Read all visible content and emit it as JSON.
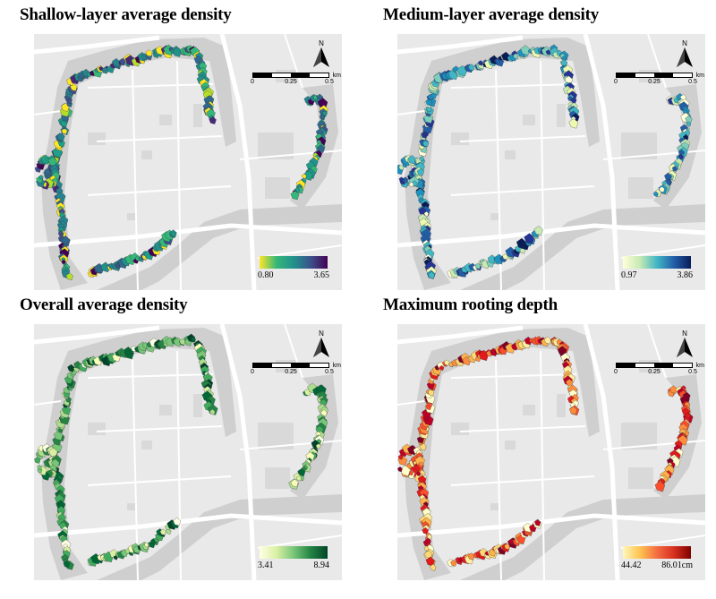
{
  "north_label": "N",
  "scale_bar": {
    "ticks": [
      "0",
      "0.25",
      "0.5"
    ],
    "unit": "km"
  },
  "basemap_colors": {
    "background": "#e9e9e9",
    "roads": "#ffffff",
    "blocks": "#d9d9d9",
    "wall_band": "#cfcfcf"
  },
  "panels": [
    {
      "title": "Shallow-layer average density",
      "legend": {
        "min": "0.80",
        "max": "3.65",
        "colors": [
          "#fde725",
          "#35b779",
          "#21918c",
          "#3b528b",
          "#440154"
        ]
      },
      "palette": [
        "#fde725",
        "#b5de2b",
        "#35b779",
        "#1f9e89",
        "#21918c",
        "#26828e",
        "#31688e",
        "#3b528b",
        "#482878",
        "#440154"
      ],
      "weights": [
        0.08,
        0.06,
        0.12,
        0.12,
        0.16,
        0.14,
        0.12,
        0.1,
        0.06,
        0.04
      ]
    },
    {
      "title": "Medium-layer average density",
      "legend": {
        "min": "0.97",
        "max": "3.86",
        "colors": [
          "#ffffd9",
          "#c7e9b4",
          "#41b6c4",
          "#225ea8",
          "#081d58"
        ]
      },
      "palette": [
        "#ffffd9",
        "#edf8b1",
        "#c7e9b4",
        "#7fcdbb",
        "#41b6c4",
        "#1d91c0",
        "#225ea8",
        "#253494",
        "#081d58"
      ],
      "weights": [
        0.07,
        0.07,
        0.1,
        0.14,
        0.18,
        0.16,
        0.14,
        0.09,
        0.05
      ]
    },
    {
      "title": "Overall average density",
      "legend": {
        "min": "3.41",
        "max": "8.94",
        "colors": [
          "#ffffe5",
          "#d9f0a3",
          "#78c679",
          "#238443",
          "#004529"
        ]
      },
      "palette": [
        "#ffffe5",
        "#f7fcb9",
        "#d9f0a3",
        "#addd8e",
        "#78c679",
        "#41ab5d",
        "#238443",
        "#006837",
        "#004529"
      ],
      "weights": [
        0.05,
        0.07,
        0.1,
        0.12,
        0.16,
        0.16,
        0.16,
        0.11,
        0.07
      ]
    },
    {
      "title": "Maximum rooting depth",
      "legend": {
        "min": "44.42",
        "max": "86.01cm",
        "colors": [
          "#fff7bc",
          "#fec44f",
          "#f46d43",
          "#d7301f",
          "#7f0000"
        ]
      },
      "palette": [
        "#ffffcc",
        "#ffeda0",
        "#fed976",
        "#feb24c",
        "#fd8d3c",
        "#fc4e2a",
        "#e31a1c",
        "#bd0026",
        "#800026"
      ],
      "weights": [
        0.1,
        0.08,
        0.1,
        0.1,
        0.12,
        0.14,
        0.14,
        0.12,
        0.1
      ]
    }
  ]
}
